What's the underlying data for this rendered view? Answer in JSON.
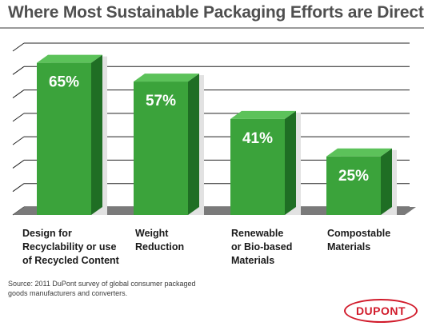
{
  "chart_data": {
    "type": "bar",
    "title": "Where Most Sustainable Packaging Efforts are Directed",
    "categories": [
      "Design for\nRecyclability or use\nof Recycled Content",
      "Weight\nReduction",
      "Renewable\nor Bio-based\nMaterials",
      "Compostable\nMaterials"
    ],
    "values": [
      65,
      57,
      41,
      25
    ],
    "value_labels": [
      "65%",
      "57%",
      "41%",
      "25%"
    ],
    "ylim": [
      0,
      70
    ],
    "grid": true,
    "style": "3d",
    "colors": {
      "bar_front": "#3ba33b",
      "bar_side": "#1f6e24",
      "bar_top": "#5cc25a",
      "shadow": "#e2e2e2",
      "floor": "#7a7a7a",
      "gridline": "#222222"
    }
  },
  "source_note": "Source: 2011 DuPont survey of global consumer packaged goods manufacturers and converters.",
  "logo_text": "DUPONT"
}
